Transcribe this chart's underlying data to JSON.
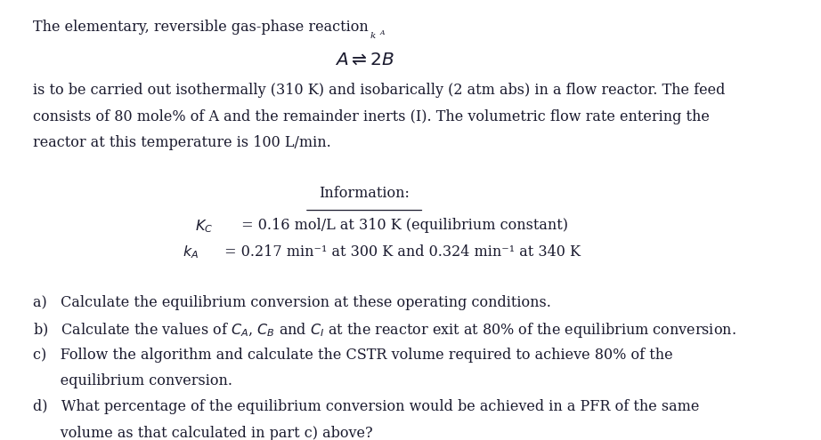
{
  "bg_color": "#ffffff",
  "text_color": "#1a1a2e",
  "fig_width": 9.22,
  "fig_height": 4.95,
  "dpi": 100,
  "line1": "The elementary, reversible gas-phase reaction",
  "line2": "is to be carried out isothermally (310 K) and isobarically (2 atm abs) in a flow reactor. The feed",
  "line3": "consists of 80 mole% of A and the remainder inerts (I). The volumetric flow rate entering the",
  "line4": "reactor at this temperature is 100 L/min.",
  "info_header": "Information:",
  "info1_right": " = 0.16 mol/L at 310 K (equilibrium constant)",
  "info2_right": " = 0.217 min⁻¹ at 300 K and 0.324 min⁻¹ at 340 K",
  "qa": "a)   Calculate the equilibrium conversion at these operating conditions.",
  "qc1": "c)   Follow the algorithm and calculate the CSTR volume required to achieve 80% of the",
  "qc2": "      equilibrium conversion.",
  "qd1": "d)   What percentage of the equilibrium conversion would be achieved in a PFR of the same",
  "qd2": "      volume as that calculated in part c) above?"
}
